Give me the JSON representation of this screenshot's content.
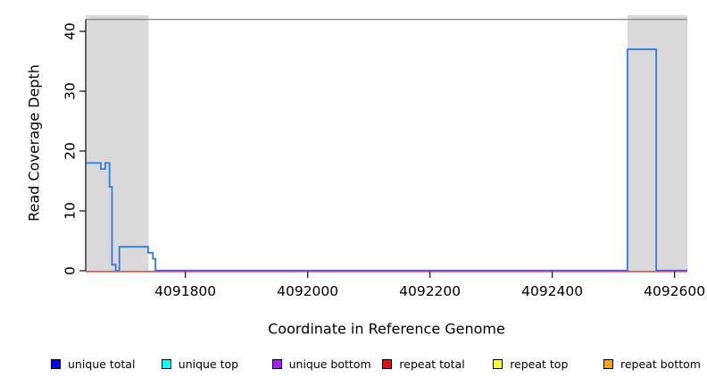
{
  "chart_data": {
    "type": "line",
    "subtype": "step-coverage",
    "title": "",
    "xlabel": "Coordinate in Reference Genome",
    "ylabel": "Read Coverage Depth",
    "xlim": [
      4091637,
      4092621
    ],
    "ylim": [
      0,
      42.7
    ],
    "x_ticks": [
      "4091800",
      "4092000",
      "4092200",
      "4092400",
      "4092600"
    ],
    "x_tick_values": [
      4091800,
      4092000,
      4092200,
      4092400,
      4092600
    ],
    "y_ticks": [
      "0",
      "10",
      "20",
      "30",
      "40"
    ],
    "y_tick_values": [
      0,
      10,
      20,
      30,
      40
    ],
    "grid": false,
    "legend_position": "bottom",
    "shaded_regions": [
      {
        "name": "repeat-region-left",
        "start": 4091637,
        "end": 4091740,
        "color": "#d9d9d9"
      },
      {
        "name": "repeat-region-right",
        "start": 4092523,
        "end": 4092621,
        "color": "#d9d9d9"
      }
    ],
    "top_boundary_line": {
      "y": 42,
      "color": "#8a8a8a"
    },
    "series": [
      {
        "name": "unique total coverage trace",
        "color": "#2e7ce8",
        "points": [
          [
            4091637,
            18
          ],
          [
            4091662,
            18
          ],
          [
            4091662,
            17
          ],
          [
            4091669,
            17
          ],
          [
            4091669,
            18
          ],
          [
            4091676,
            18
          ],
          [
            4091676,
            14
          ],
          [
            4091680,
            14
          ],
          [
            4091680,
            1
          ],
          [
            4091686,
            1
          ],
          [
            4091686,
            0
          ],
          [
            4091692,
            0
          ],
          [
            4091692,
            4
          ],
          [
            4091739,
            4
          ],
          [
            4091739,
            3
          ],
          [
            4091747,
            3
          ],
          [
            4091747,
            2
          ],
          [
            4091751,
            2
          ],
          [
            4091751,
            0
          ],
          [
            4092523,
            0
          ],
          [
            4092523,
            37
          ],
          [
            4092570,
            37
          ],
          [
            4092570,
            0
          ],
          [
            4092621,
            0
          ]
        ]
      }
    ],
    "baseline_series": [
      {
        "name": "repeat total baseline",
        "color": "#ee4545",
        "y": 0,
        "segments": [
          [
            4091637,
            4092621
          ]
        ]
      },
      {
        "name": "unique bottom baseline",
        "color": "#5b52e0",
        "y": 0,
        "segments": [
          [
            4091752,
            4092523
          ],
          [
            4092570,
            4092621
          ]
        ]
      }
    ],
    "legend": [
      {
        "label": "unique total",
        "color": "#0000ff"
      },
      {
        "label": "unique top",
        "color": "#00ffff"
      },
      {
        "label": "unique bottom",
        "color": "#a020f0"
      },
      {
        "label": "repeat total",
        "color": "#ff0000"
      },
      {
        "label": "repeat top",
        "color": "#ffff00"
      },
      {
        "label": "repeat bottom",
        "color": "#ffa500"
      }
    ]
  }
}
